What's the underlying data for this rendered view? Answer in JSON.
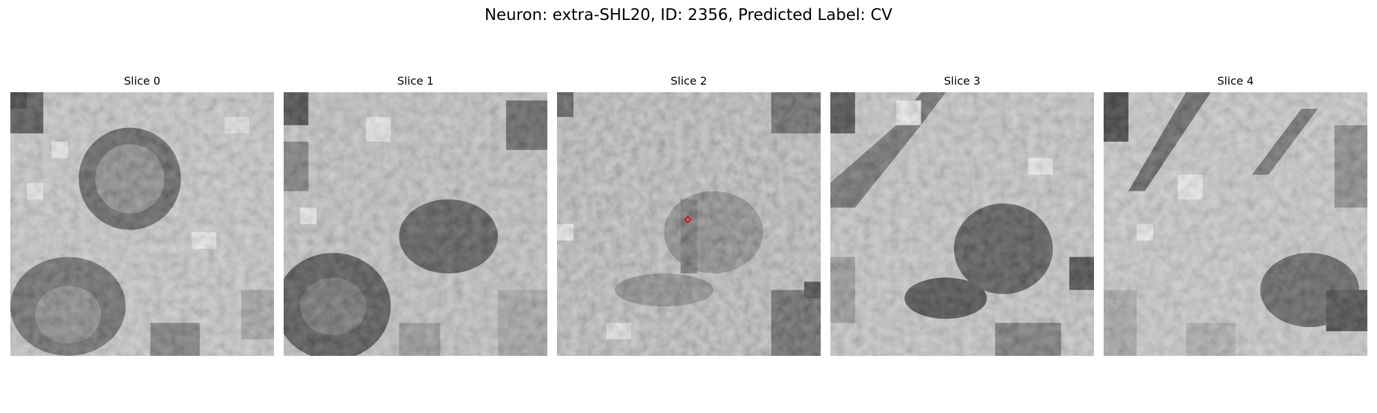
{
  "figure": {
    "title": "Neuron: extra-SHL20, ID: 2356, Predicted Label: CV"
  },
  "slices": [
    {
      "title": "Slice 0"
    },
    {
      "title": "Slice 1"
    },
    {
      "title": "Slice 2",
      "marker": "red-diamond-marker"
    },
    {
      "title": "Slice 3"
    },
    {
      "title": "Slice 4"
    }
  ],
  "colors": {
    "marker": "#e01010",
    "colormap": "grayscale"
  }
}
